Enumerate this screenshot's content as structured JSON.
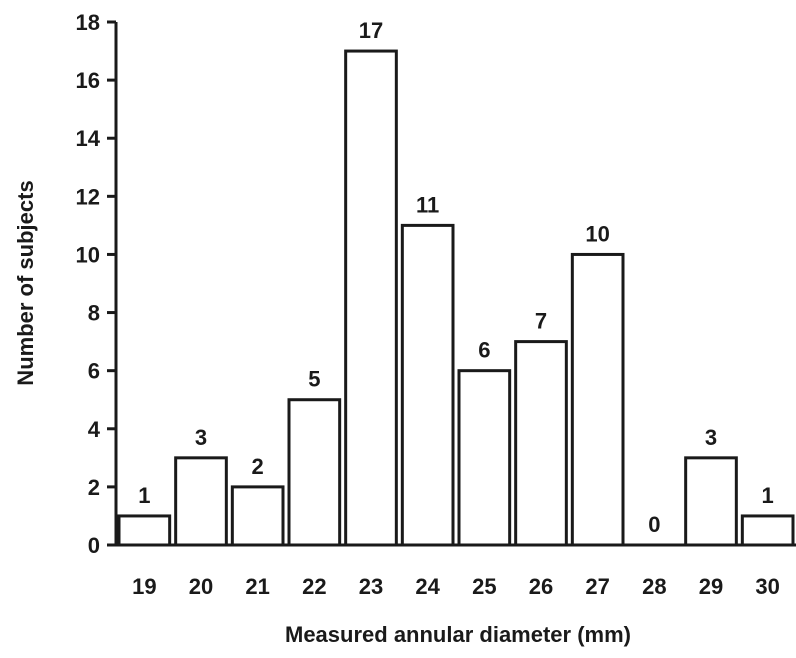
{
  "chart_data": {
    "type": "bar",
    "categories": [
      "19",
      "20",
      "21",
      "22",
      "23",
      "24",
      "25",
      "26",
      "27",
      "28",
      "29",
      "30"
    ],
    "values": [
      1,
      3,
      2,
      5,
      17,
      11,
      6,
      7,
      10,
      0,
      3,
      1
    ],
    "data_labels": [
      "1",
      "3",
      "2",
      "5",
      "17",
      "11",
      "6",
      "7",
      "10",
      "0",
      "3",
      "1"
    ],
    "title": "",
    "xlabel": "Measured annular diameter (mm)",
    "ylabel": "Number of subjects",
    "ylim": [
      0,
      18
    ],
    "yticks": [
      "0",
      "2",
      "4",
      "6",
      "8",
      "10",
      "12",
      "14",
      "16",
      "18"
    ],
    "grid": false,
    "legend": "none",
    "colors": {
      "bar_fill": "#ffffff",
      "bar_stroke": "#1a1a1a",
      "axis": "#1a1a1a",
      "text": "#1a1a1a"
    }
  }
}
